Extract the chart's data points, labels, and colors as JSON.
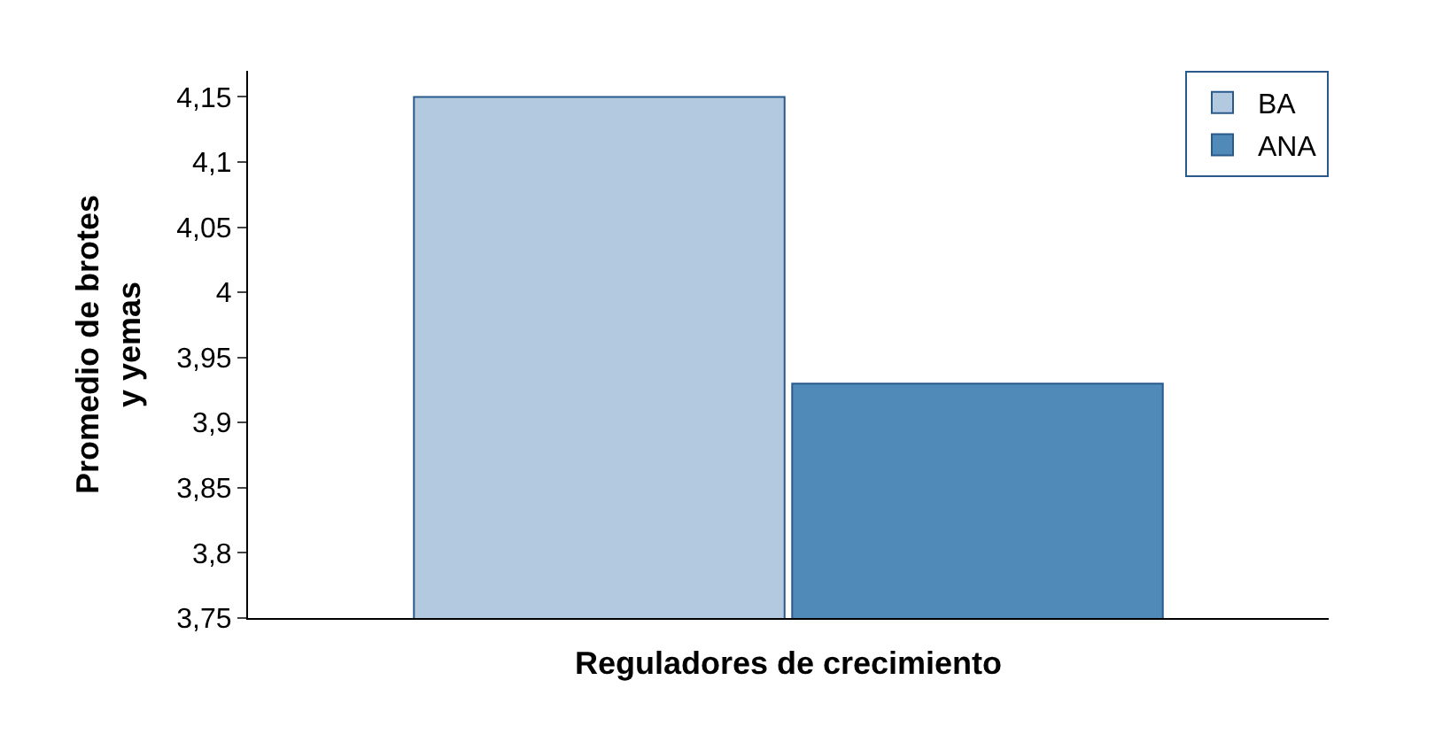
{
  "chart_data": {
    "type": "bar",
    "xlabel": "Reguladores de crecimiento",
    "ylabel": "Promedio de brotes\ny yemas",
    "categories": [
      null
    ],
    "series": [
      {
        "name": "BA",
        "color": "#b3c9df",
        "values": [
          4.15
        ]
      },
      {
        "name": "ANA",
        "color": "#4f8ab9",
        "values": [
          3.93
        ]
      }
    ],
    "ylim": [
      3.75,
      4.17
    ],
    "yticks": [
      {
        "value": 3.75,
        "label": "3,75"
      },
      {
        "value": 3.8,
        "label": "3,8"
      },
      {
        "value": 3.85,
        "label": "3,85"
      },
      {
        "value": 3.9,
        "label": "3,9"
      },
      {
        "value": 3.95,
        "label": "3,95"
      },
      {
        "value": 4,
        "label": "4"
      },
      {
        "value": 4.05,
        "label": "4,05"
      },
      {
        "value": 4.1,
        "label": "4,1"
      },
      {
        "value": 4.15,
        "label": "4,15"
      }
    ],
    "legend": "top right"
  }
}
